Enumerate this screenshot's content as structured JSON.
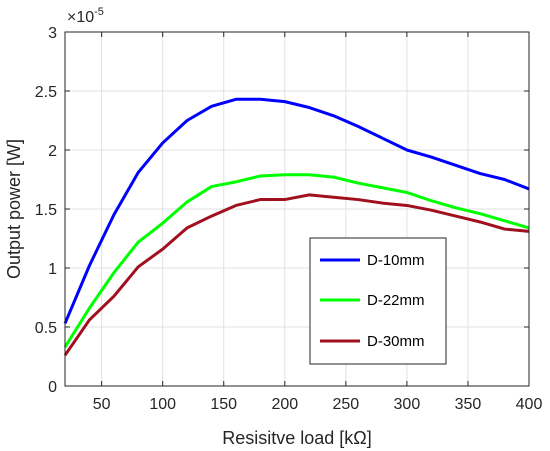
{
  "chart_data": {
    "type": "line",
    "xlabel": "Resisitve load [kΩ]",
    "ylabel": "Output power [W]",
    "y_exponent_label": "×10",
    "y_exponent_power": "-5",
    "xlim": [
      20,
      400
    ],
    "ylim": [
      0,
      3
    ],
    "xticks": [
      50,
      100,
      150,
      200,
      250,
      300,
      350,
      400
    ],
    "yticks": [
      0,
      0.5,
      1,
      1.5,
      2,
      2.5,
      3
    ],
    "xtick_labels": [
      "50",
      "100",
      "150",
      "200",
      "250",
      "300",
      "350",
      "400"
    ],
    "ytick_labels": [
      "0",
      "0.5",
      "1",
      "1.5",
      "2",
      "2.5",
      "3"
    ],
    "grid": true,
    "legend_position": "lower-right",
    "x": [
      20,
      40,
      60,
      80,
      100,
      120,
      140,
      160,
      180,
      200,
      220,
      240,
      260,
      280,
      300,
      320,
      340,
      360,
      380,
      400
    ],
    "series": [
      {
        "name": "D-10mm",
        "color": "#0000ff",
        "values": [
          0.53,
          1.02,
          1.45,
          1.81,
          2.06,
          2.25,
          2.37,
          2.43,
          2.43,
          2.41,
          2.36,
          2.29,
          2.2,
          2.1,
          2.0,
          1.94,
          1.87,
          1.8,
          1.75,
          1.67
        ]
      },
      {
        "name": "D-22mm",
        "color": "#00ff00",
        "values": [
          0.33,
          0.66,
          0.96,
          1.22,
          1.38,
          1.56,
          1.69,
          1.73,
          1.78,
          1.79,
          1.79,
          1.77,
          1.72,
          1.68,
          1.64,
          1.57,
          1.51,
          1.46,
          1.4,
          1.34
        ]
      },
      {
        "name": "D-30mm",
        "color": "#a0101e",
        "values": [
          0.26,
          0.56,
          0.76,
          1.01,
          1.16,
          1.34,
          1.44,
          1.53,
          1.58,
          1.58,
          1.62,
          1.6,
          1.58,
          1.55,
          1.53,
          1.49,
          1.44,
          1.39,
          1.33,
          1.31
        ]
      }
    ]
  }
}
